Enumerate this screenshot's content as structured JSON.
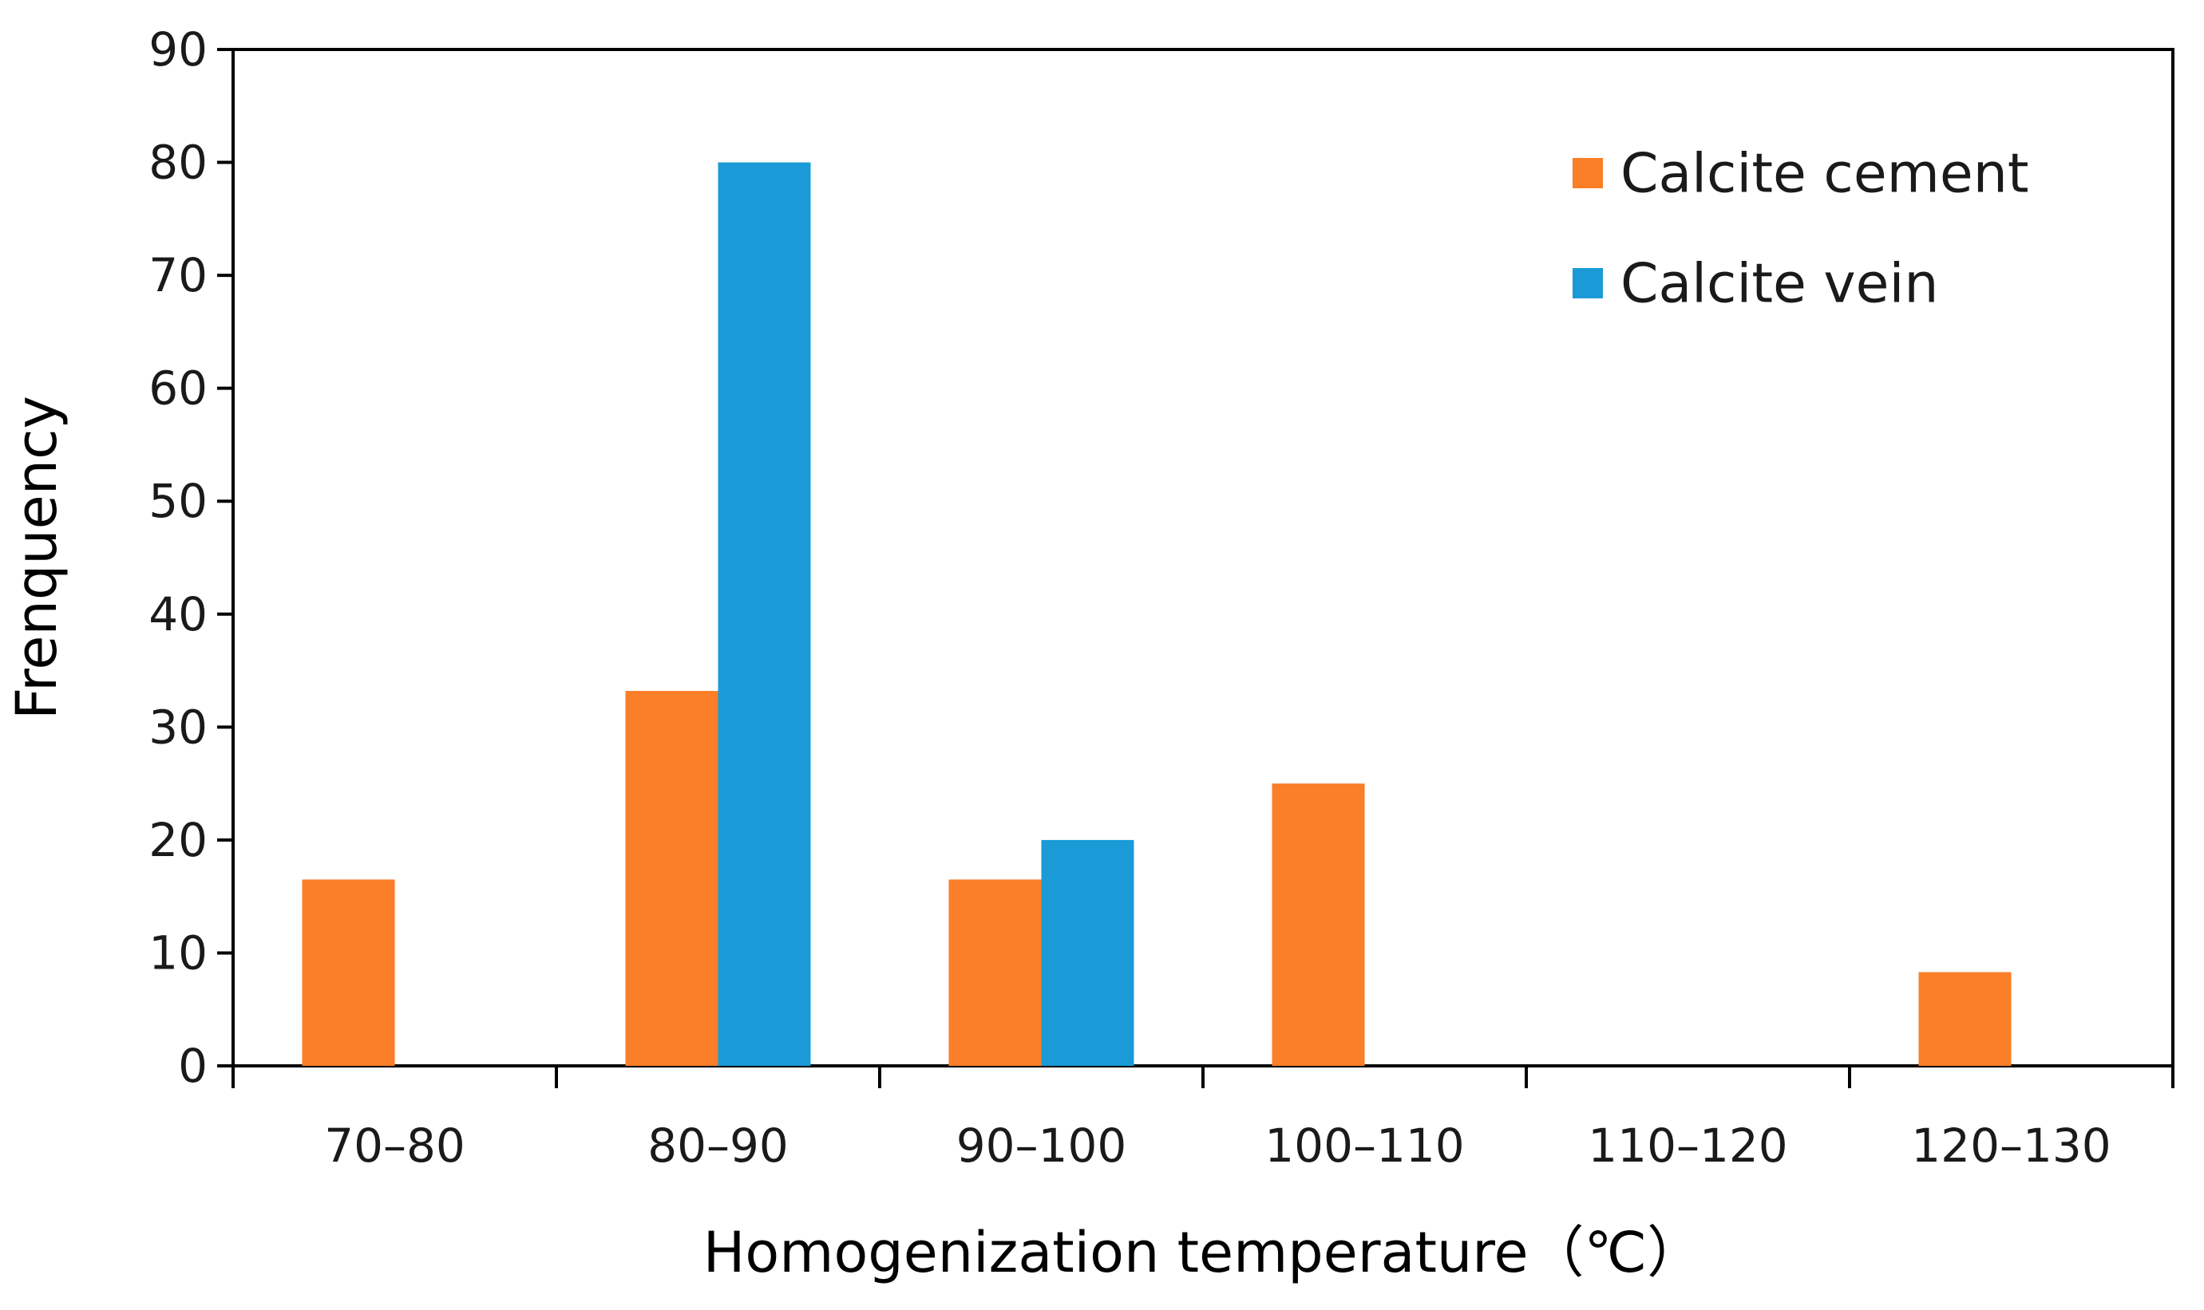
{
  "chart_data": {
    "type": "bar",
    "title": "",
    "xlabel": "Homogenization temperature（℃）",
    "ylabel": "Frenquency",
    "ylim": [
      0,
      90
    ],
    "yticks": [
      0,
      10,
      20,
      30,
      40,
      50,
      60,
      70,
      80,
      90
    ],
    "categories": [
      "70–80",
      "80–90",
      "90–100",
      "100–110",
      "110–120",
      "120–130"
    ],
    "series": [
      {
        "name": "Calcite cement",
        "color": "#fb7e28",
        "values": [
          16.5,
          33.2,
          16.5,
          25,
          0,
          8.3
        ]
      },
      {
        "name": "Calcite vein",
        "color": "#1a9bd7",
        "values": [
          0,
          80,
          20,
          0,
          0,
          0
        ]
      }
    ],
    "legend_position": "top-right",
    "grid": false
  }
}
